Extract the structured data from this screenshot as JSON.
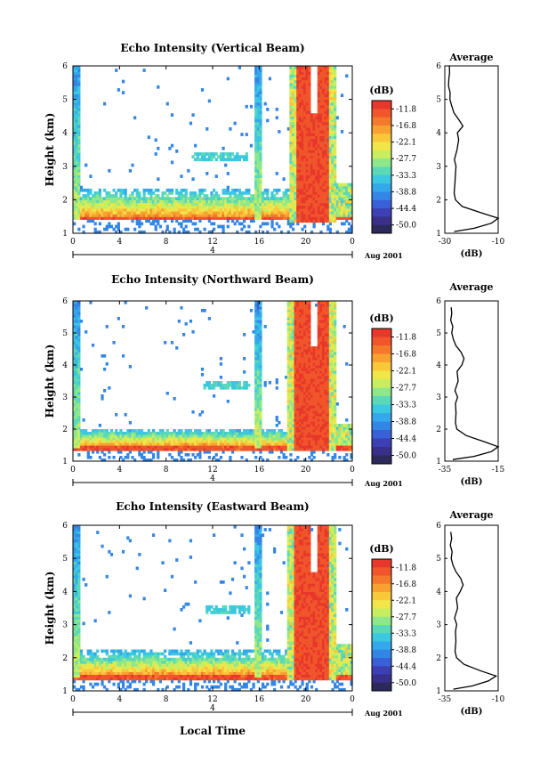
{
  "figure": {
    "bottom_axis_label": "Local Time",
    "date_label": "Aug 2001",
    "day_label": "4",
    "colorbar_unit": "(dB)",
    "average_title": "Average",
    "average_xlabel": "(dB)"
  },
  "colorbar": {
    "ticks": [
      "-11.8",
      "-16.8",
      "-22.1",
      "-27.7",
      "-33.3",
      "-38.8",
      "-44.4",
      "-50.0"
    ],
    "colors": [
      "#e8372b",
      "#f0552b",
      "#f5792d",
      "#f8a030",
      "#f8c73a",
      "#f0e64a",
      "#c8ee60",
      "#8ee88a",
      "#5ad8b8",
      "#3cc8e0",
      "#34a8ea",
      "#3486e6",
      "#3a60d8",
      "#3c40b4",
      "#38308a",
      "#2c2a5a"
    ]
  },
  "chart_data": [
    {
      "type": "heatmap",
      "title": "Echo Intensity (Vertical Beam)",
      "xlabel": "",
      "ylabel": "Height (km)",
      "xlim": [
        0,
        24
      ],
      "ylim": [
        1,
        6
      ],
      "xticks": [
        "0",
        "4",
        "8",
        "12",
        "16",
        "20",
        "0"
      ],
      "yticks": [
        "1",
        "2",
        "3",
        "4",
        "5",
        "6"
      ],
      "value_range_db": [
        -50.0,
        -11.8
      ],
      "features": [
        {
          "label": "surface clutter layer",
          "height_km": [
            1.35,
            1.5
          ],
          "hours": [
            0,
            24
          ],
          "db": -12
        },
        {
          "label": "boundary layer echo",
          "height_km": [
            1.5,
            2.3
          ],
          "hours": [
            0,
            24
          ],
          "db": -33
        },
        {
          "label": "precipitation",
          "height_km": [
            1.3,
            6.0
          ],
          "hours": [
            19.2,
            21.8
          ],
          "db": -12
        },
        {
          "label": "elevated layer",
          "height_km": [
            3.1,
            3.35
          ],
          "hours": [
            10.2,
            14.8
          ],
          "db": -36
        }
      ],
      "average": {
        "xlim": [
          -30,
          -10
        ],
        "xticks": [
          "-30",
          "-10"
        ],
        "heights_km": [
          1.05,
          1.15,
          1.3,
          1.45,
          1.6,
          1.8,
          2.0,
          2.2,
          2.5,
          2.8,
          3.0,
          3.2,
          3.5,
          3.8,
          4.0,
          4.2,
          4.4,
          4.6,
          4.8,
          5.0,
          5.2,
          5.4,
          5.6,
          5.8,
          6.0
        ],
        "db": [
          -26.5,
          -19.0,
          -12.5,
          -10.0,
          -16.0,
          -23.5,
          -26.0,
          -26.5,
          -26.2,
          -26.0,
          -25.8,
          -26.4,
          -25.4,
          -24.8,
          -25.3,
          -23.2,
          -24.8,
          -26.6,
          -27.4,
          -28.1,
          -28.0,
          -28.6,
          -28.5,
          -28.2,
          -28.3
        ]
      }
    },
    {
      "type": "heatmap",
      "title": "Echo Intensity (Northward Beam)",
      "xlabel": "",
      "ylabel": "Height (km)",
      "xlim": [
        0,
        24
      ],
      "ylim": [
        1,
        6
      ],
      "xticks": [
        "0",
        "4",
        "8",
        "12",
        "16",
        "20",
        "0"
      ],
      "yticks": [
        "1",
        "2",
        "3",
        "4",
        "5",
        "6"
      ],
      "value_range_db": [
        -50.0,
        -11.8
      ],
      "features": [
        {
          "label": "surface clutter layer",
          "height_km": [
            1.3,
            1.45
          ],
          "hours": [
            0,
            24
          ],
          "db": -12
        },
        {
          "label": "boundary layer echo",
          "height_km": [
            1.45,
            2.0
          ],
          "hours": [
            0,
            24
          ],
          "db": -33
        },
        {
          "label": "precipitation",
          "height_km": [
            1.3,
            6.0
          ],
          "hours": [
            18.9,
            21.8
          ],
          "db": -12
        },
        {
          "label": "elevated layer",
          "height_km": [
            3.2,
            3.45
          ],
          "hours": [
            11.2,
            15.0
          ],
          "db": -36
        }
      ],
      "average": {
        "xlim": [
          -35,
          -15
        ],
        "xticks": [
          "-35",
          "-15"
        ],
        "heights_km": [
          1.05,
          1.15,
          1.3,
          1.45,
          1.6,
          1.8,
          2.0,
          2.2,
          2.5,
          2.8,
          3.0,
          3.2,
          3.5,
          3.8,
          4.0,
          4.2,
          4.4,
          4.6,
          4.8,
          5.0,
          5.2,
          5.4,
          5.6,
          5.8
        ],
        "db": [
          -32.0,
          -24.0,
          -17.5,
          -15.0,
          -20.0,
          -27.0,
          -30.5,
          -31.0,
          -30.8,
          -31.0,
          -30.2,
          -31.2,
          -30.0,
          -30.4,
          -28.6,
          -27.8,
          -28.9,
          -30.8,
          -31.8,
          -32.4,
          -32.0,
          -32.8,
          -32.4,
          -32.6
        ]
      }
    },
    {
      "type": "heatmap",
      "title": "Echo Intensity (Eastward Beam)",
      "xlabel": "Local Time",
      "ylabel": "Height (km)",
      "xlim": [
        0,
        24
      ],
      "ylim": [
        1,
        6
      ],
      "xticks": [
        "0",
        "4",
        "8",
        "12",
        "16",
        "20",
        "0"
      ],
      "yticks": [
        "1",
        "2",
        "3",
        "4",
        "5",
        "6"
      ],
      "value_range_db": [
        -50.0,
        -11.8
      ],
      "features": [
        {
          "label": "surface clutter layer",
          "height_km": [
            1.3,
            1.45
          ],
          "hours": [
            0,
            24
          ],
          "db": -12
        },
        {
          "label": "boundary layer echo",
          "height_km": [
            1.45,
            2.2
          ],
          "hours": [
            0,
            24
          ],
          "db": -33
        },
        {
          "label": "precipitation",
          "height_km": [
            1.3,
            6.0
          ],
          "hours": [
            19.0,
            21.8
          ],
          "db": -12
        },
        {
          "label": "elevated layer",
          "height_km": [
            3.3,
            3.55
          ],
          "hours": [
            11.4,
            15.2
          ],
          "db": -36
        }
      ],
      "average": {
        "xlim": [
          -35,
          -10
        ],
        "xticks": [
          "-35",
          "-10"
        ],
        "heights_km": [
          1.05,
          1.15,
          1.3,
          1.45,
          1.6,
          1.8,
          2.0,
          2.2,
          2.5,
          2.8,
          3.0,
          3.2,
          3.5,
          3.8,
          4.0,
          4.2,
          4.4,
          4.6,
          4.8,
          5.0,
          5.2,
          5.4,
          5.6,
          5.8
        ],
        "db": [
          -31.0,
          -22.0,
          -14.5,
          -11.0,
          -18.0,
          -26.0,
          -29.5,
          -30.2,
          -29.8,
          -30.0,
          -29.4,
          -30.4,
          -29.0,
          -29.6,
          -27.8,
          -26.4,
          -27.6,
          -29.8,
          -31.2,
          -32.0,
          -31.6,
          -32.4,
          -31.8,
          -32.2
        ]
      }
    }
  ]
}
